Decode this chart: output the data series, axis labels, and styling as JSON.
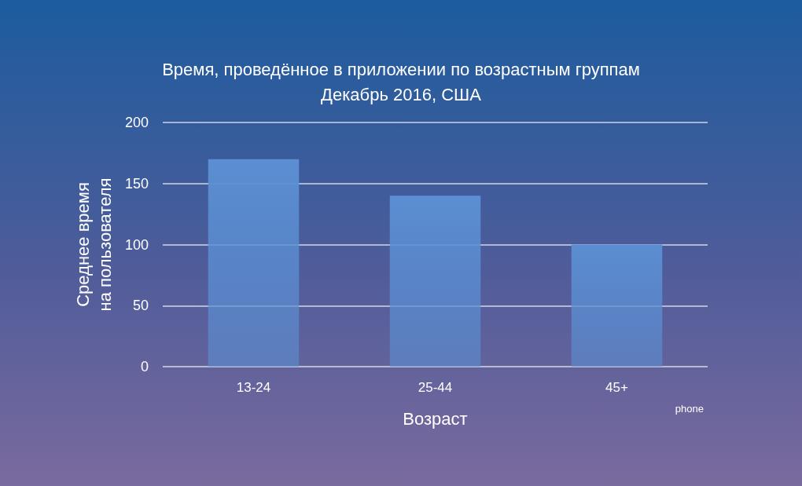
{
  "chart_data": {
    "type": "bar",
    "title": "Время, проведённое в приложении по возрастным группам",
    "subtitle": "Декабрь 2016, США",
    "xlabel": "Возраст",
    "ylabel": "Среднее время\nна пользователя",
    "categories": [
      "13-24",
      "25-44",
      "45+"
    ],
    "values": [
      170,
      140,
      100
    ],
    "color": "#5b8ed2",
    "ylim": [
      0,
      200
    ],
    "yticks": [
      0,
      50,
      100,
      150,
      200
    ],
    "grid": "y",
    "annotations": [
      "phone"
    ]
  }
}
